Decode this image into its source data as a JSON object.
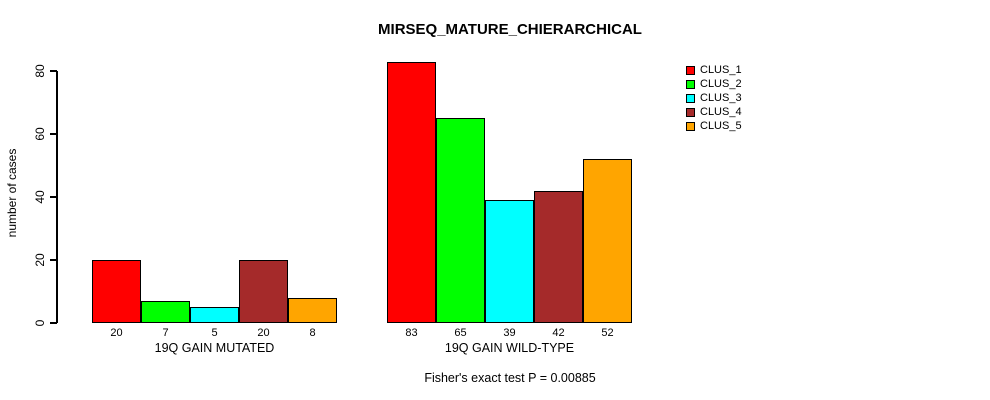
{
  "figure": {
    "background": "#ffffff",
    "title": "MIRSEQ_MATURE_CHIERARCHICAL",
    "caption": "Fisher's exact test P = 0.00885"
  },
  "chart_data": {
    "type": "bar",
    "title": "MIRSEQ_MATURE_CHIERARCHICAL",
    "xlabel": "",
    "ylabel": "number of cases",
    "ylim": [
      0,
      80
    ],
    "yticks": [
      "0",
      "20",
      "40",
      "60",
      "80"
    ],
    "grid": false,
    "legend_position": "right",
    "categories": [
      "19Q GAIN MUTATED",
      "19Q GAIN WILD-TYPE"
    ],
    "series": [
      {
        "name": "CLUS_1",
        "color": "#ff0000",
        "values": [
          20,
          83
        ]
      },
      {
        "name": "CLUS_2",
        "color": "#00ff00",
        "values": [
          7,
          65
        ]
      },
      {
        "name": "CLUS_3",
        "color": "#00ffff",
        "values": [
          5,
          39
        ]
      },
      {
        "name": "CLUS_4",
        "color": "#a52a2a",
        "values": [
          20,
          42
        ]
      },
      {
        "name": "CLUS_5",
        "color": "#ffa500",
        "values": [
          8,
          52
        ]
      }
    ],
    "bar_value_labels": [
      [
        "20",
        "7",
        "5",
        "20",
        "8"
      ],
      [
        "83",
        "65",
        "39",
        "42",
        "52"
      ]
    ],
    "annotation": "Fisher's exact test P = 0.00885"
  },
  "legend": {
    "items": [
      {
        "label": "CLUS_1",
        "color": "#ff0000"
      },
      {
        "label": "CLUS_2",
        "color": "#00ff00"
      },
      {
        "label": "CLUS_3",
        "color": "#00ffff"
      },
      {
        "label": "CLUS_4",
        "color": "#a52a2a"
      },
      {
        "label": "CLUS_5",
        "color": "#ffa500"
      }
    ]
  }
}
